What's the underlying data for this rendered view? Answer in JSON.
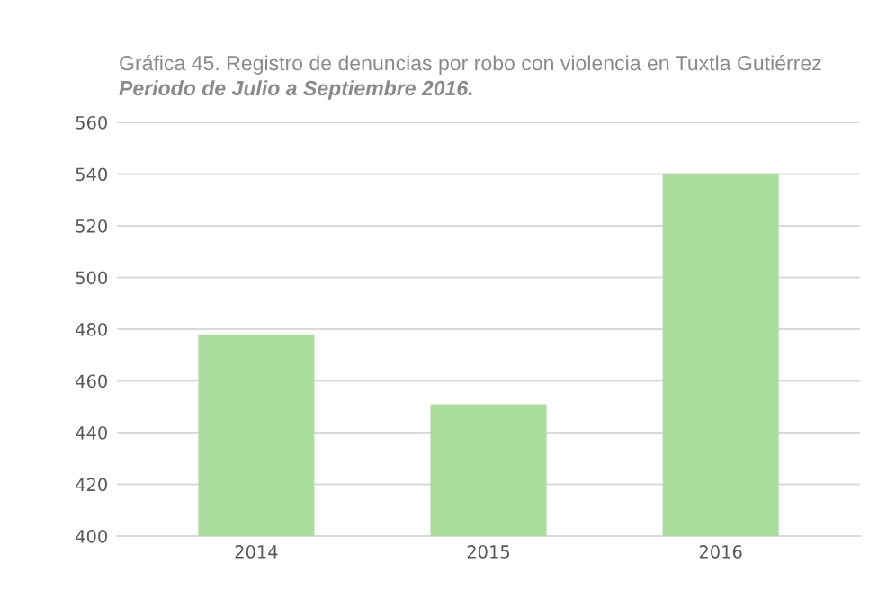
{
  "chart_data": {
    "type": "bar",
    "title": "Gráfica 45. Registro de denuncias por robo con violencia en Tuxtla Gutiérrez",
    "subtitle": "Periodo de Julio a Septiembre 2016.",
    "categories": [
      "2014",
      "2015",
      "2016"
    ],
    "values": [
      478,
      451,
      540
    ],
    "color": "#aadd9e",
    "ylim": [
      400,
      560
    ],
    "yticks": [
      400,
      420,
      440,
      460,
      480,
      500,
      520,
      540,
      560
    ],
    "grid": "y"
  }
}
